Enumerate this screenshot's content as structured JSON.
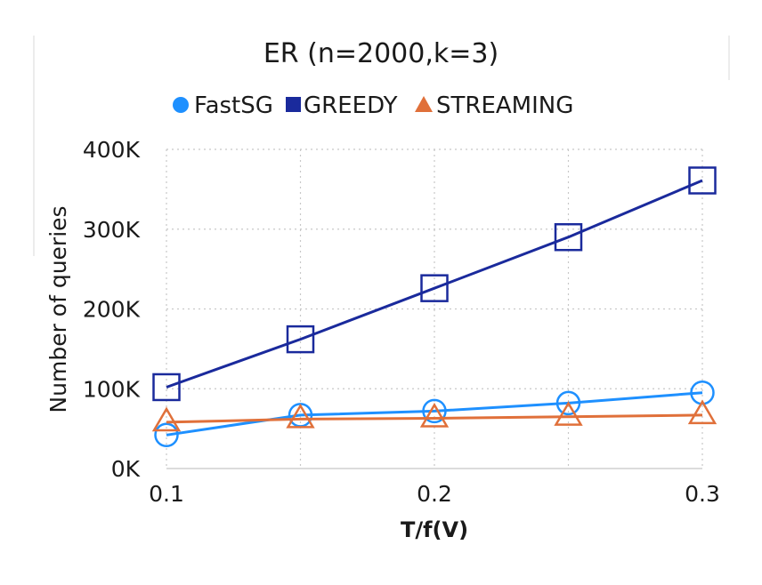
{
  "chart_data": {
    "type": "line",
    "title": "ER (n=2000,k=3)",
    "xlabel": "T/f(V)",
    "ylabel": "Number of queries",
    "x": [
      0.1,
      0.15,
      0.2,
      0.25,
      0.3
    ],
    "xticks": [
      0.1,
      0.2,
      0.3
    ],
    "xtick_labels": [
      "0.1",
      "0.2",
      "0.3"
    ],
    "xlim": [
      0.1,
      0.3
    ],
    "ylim": [
      0,
      400000
    ],
    "yticks": [
      0,
      100000,
      200000,
      300000,
      400000
    ],
    "ytick_labels": [
      "0K",
      "100K",
      "200K",
      "300K",
      "400K"
    ],
    "grid": true,
    "legend_position": "top",
    "series": [
      {
        "name": "FastSG",
        "marker": "circle",
        "color": "#1e90ff",
        "values": [
          42000,
          67000,
          72000,
          82000,
          95000
        ]
      },
      {
        "name": "GREEDY",
        "marker": "square",
        "color": "#1a2a9c",
        "values": [
          102000,
          162000,
          226000,
          290000,
          361000
        ]
      },
      {
        "name": "STREAMING",
        "marker": "triangle",
        "color": "#e0703a",
        "values": [
          58000,
          62000,
          63000,
          65000,
          67000
        ]
      }
    ]
  }
}
